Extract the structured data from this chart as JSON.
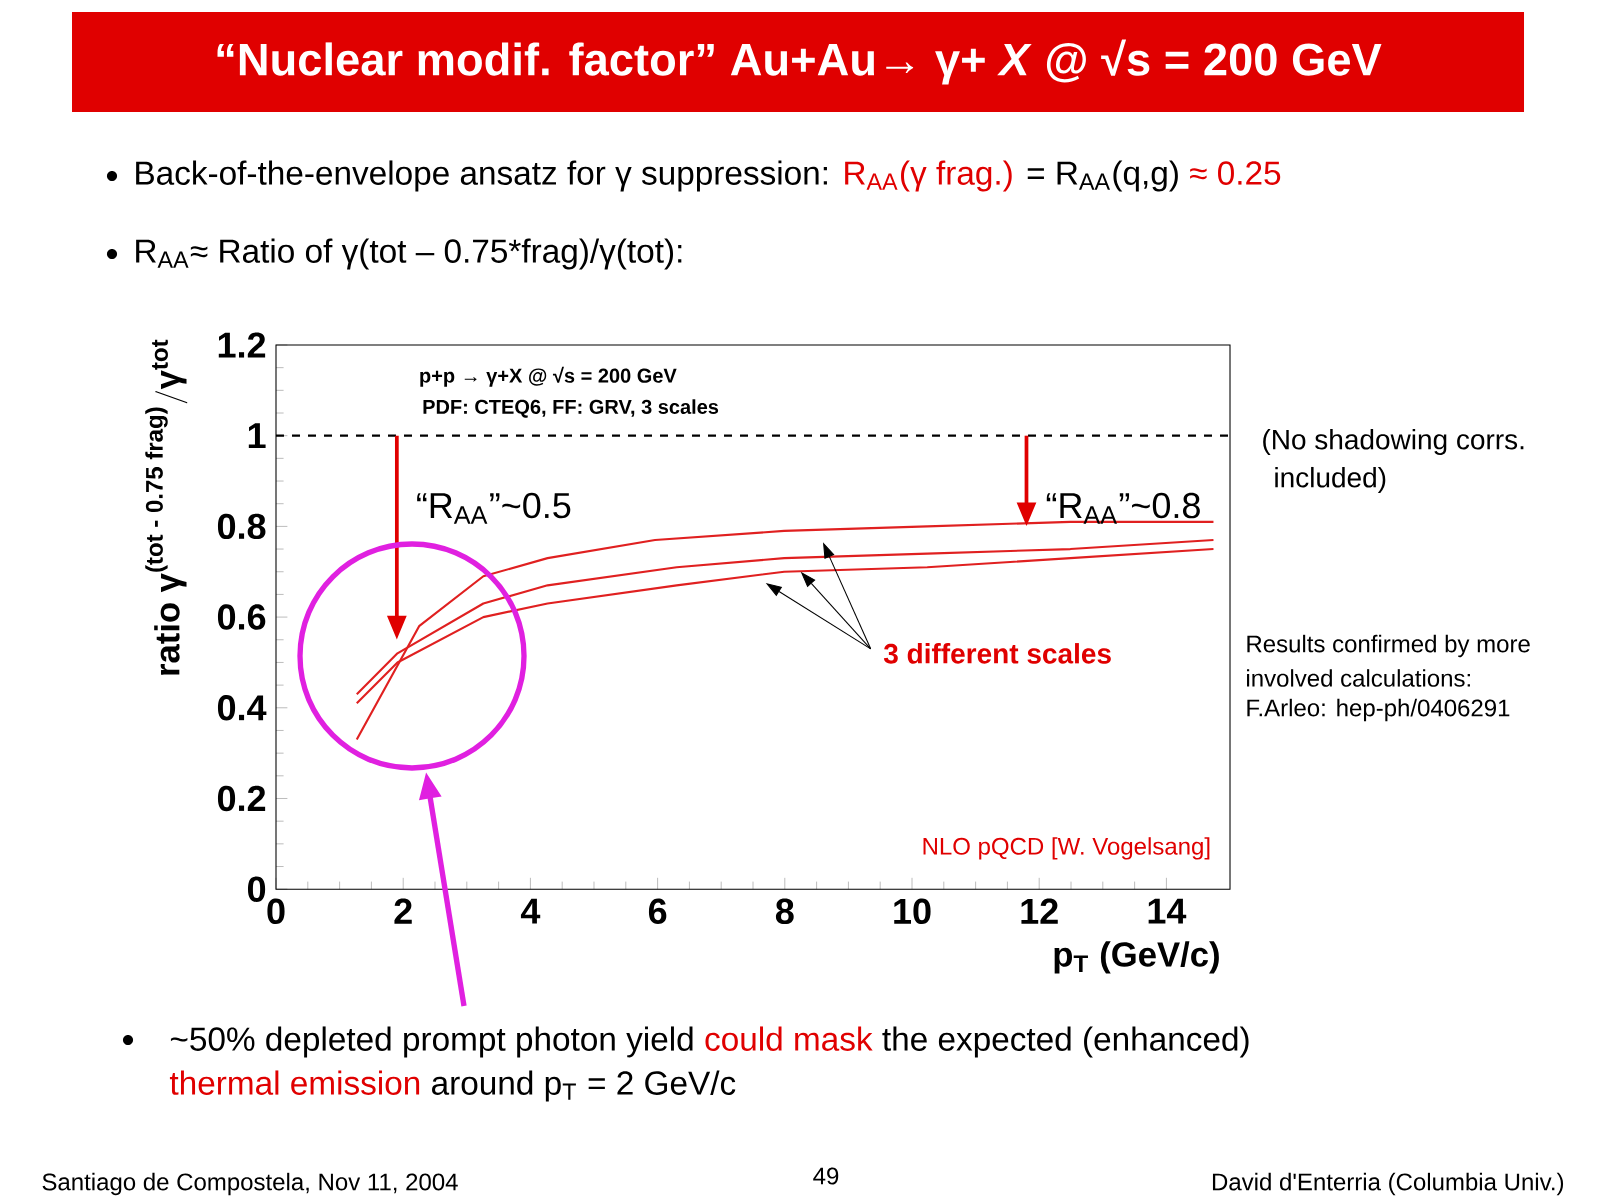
{
  "chart_data": {
    "type": "line",
    "title": "“Nuclear modif. factor” Au+Au→ γ+ *X* @ √s = 200 GeV",
    "xlabel": "p$_{T}$ (GeV/c)",
    "ylabel": "\\mbox{ratio γ}^{\\mbox{\\fontsize{9}{10}\\selectfont (tot - 0.75 frag)}}/\\mbox{γ}^{\\mbox{\\fontsize{9}{10}\\selectfont tot}}",
    "xlim": [
      0,
      15
    ],
    "ylim": [
      0,
      1.2
    ],
    "xticks": [
      0,
      2,
      4,
      6,
      8,
      10,
      12,
      14
    ],
    "yticks": [
      0,
      0.2,
      0.4,
      0.6,
      0.8,
      1,
      1.2
    ],
    "series": [
      {
        "color": "#e02020",
        "x": [
          1.27,
          2.25,
          3.26,
          4.27,
          5.96,
          7.99,
          10.24,
          12.49,
          14.74
        ],
        "values": [
          0.33,
          0.58,
          0.69,
          0.73,
          0.77,
          0.79,
          0.8,
          0.81,
          0.81
        ]
      },
      {
        "color": "#e02020",
        "x": [
          1.27,
          1.91,
          3.26,
          4.27,
          6.3,
          7.99,
          10.24,
          12.49,
          14.74
        ],
        "values": [
          0.43,
          0.52,
          0.63,
          0.67,
          0.71,
          0.73,
          0.74,
          0.75,
          0.77
        ]
      },
      {
        "color": "#e02020",
        "x": [
          1.27,
          1.91,
          3.26,
          4.27,
          6.3,
          7.99,
          10.24,
          12.49,
          14.74
        ],
        "values": [
          0.41,
          0.5,
          0.6,
          0.63,
          0.67,
          0.7,
          0.71,
          0.73,
          0.75
        ]
      }
    ],
    "ref_lines": [
      {
        "axis": "y",
        "value": 1,
        "color": "#000000",
        "line_style": "dashed"
      }
    ],
    "annotations": [
      "Back-of-the-envelope ansatz for γ suppression:",
      "R$_{AA}$(γ frag.)",
      "= R$_{AA}$(q,g)",
      "≈ 0.25",
      "R$_{AA}$≈ Ratio of γ(tot – 0.75*frag)/γ(tot):",
      "p+p → γ+X @ √s = 200 GeV",
      "PDF: CTEQ6, FF: GRV, 3 scales",
      "“R$_{AA}$”~0.5",
      "“R$_{AA}$”~0.8",
      {
        "text": "3 different scales",
        "x": 8.25,
        "y": 0.7
      },
      "NLO pQCD [W. Vogelsang]",
      "(No shadowing corrs.",
      "included)",
      "Results confirmed by more",
      "involved calculations:",
      "F.Arleo: hep-ph/0406291",
      "~50% depleted prompt photon yield",
      "could mask",
      "the expected (enhanced)",
      "thermal emission",
      "around p$_{T}$ = 2 GeV/c",
      "Santiago de Compostela, Nov 11, 2004",
      "49",
      "David d'Enterria (Columbia Univ.)"
    ]
  }
}
